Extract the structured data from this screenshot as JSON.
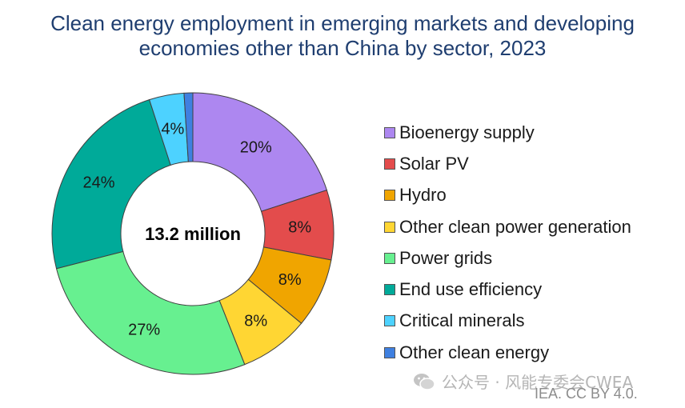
{
  "chart_data": {
    "type": "pie",
    "title": "Clean energy employment in emerging markets and developing economies other than China by sector, 2023",
    "center_label": "13.2 million",
    "legend_position": "right",
    "categories": [
      "Bioenergy supply",
      "Solar PV",
      "Hydro",
      "Other clean power generation",
      "Power grids",
      "End use efficiency",
      "Critical minerals",
      "Other clean energy"
    ],
    "values": [
      20,
      8,
      8,
      8,
      27,
      24,
      4,
      1
    ],
    "data_labels": [
      "20%",
      "8%",
      "8%",
      "8%",
      "27%",
      "24%",
      "4%",
      ""
    ],
    "colors": [
      "#ad87f0",
      "#e34c4c",
      "#f0a500",
      "#ffd633",
      "#67f090",
      "#00aa99",
      "#4dd2ff",
      "#3f80e0"
    ]
  },
  "source": "IEA. CC BY 4.0.",
  "watermark": "公众号 · 风能专委会CWEA"
}
